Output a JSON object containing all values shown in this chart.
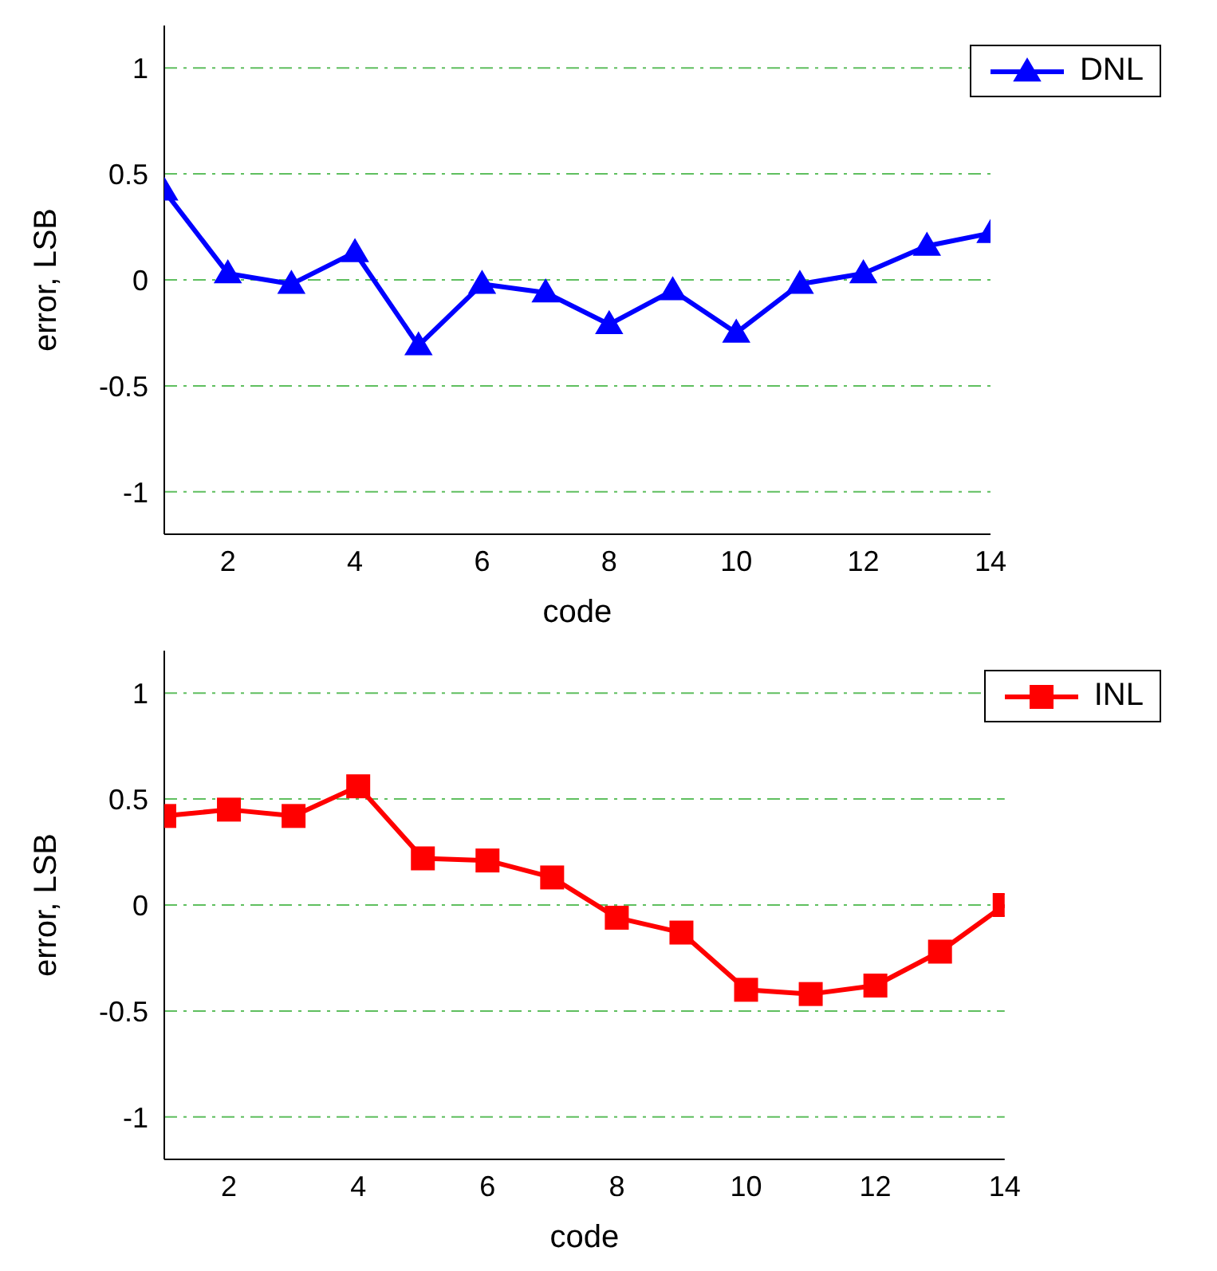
{
  "chart_data": [
    {
      "type": "line",
      "xlabel": "code",
      "ylabel": "error, LSB",
      "x": [
        1,
        2,
        3,
        4,
        5,
        6,
        7,
        8,
        9,
        10,
        11,
        12,
        13,
        14
      ],
      "series": [
        {
          "name": "DNL",
          "color": "#0000ff",
          "values": [
            0.42,
            0.03,
            -0.02,
            0.13,
            -0.31,
            -0.02,
            -0.06,
            -0.21,
            -0.05,
            -0.25,
            -0.02,
            0.03,
            0.16,
            0.22
          ]
        }
      ],
      "marker": "triangle",
      "line_style": "solid",
      "xlim": [
        1,
        14
      ],
      "xticks": [
        2,
        4,
        6,
        8,
        10,
        12,
        14
      ],
      "ylim": [
        -1.2,
        1.2
      ],
      "yticks": [
        -1,
        -0.5,
        0,
        0.5,
        1
      ],
      "grid": "y",
      "legend": "top right"
    },
    {
      "type": "line",
      "xlabel": "code",
      "ylabel": "error, LSB",
      "x": [
        1,
        2,
        3,
        4,
        5,
        6,
        7,
        8,
        9,
        10,
        11,
        12,
        13,
        14
      ],
      "series": [
        {
          "name": "INL",
          "color": "#ff0000",
          "values": [
            0.42,
            0.45,
            0.42,
            0.56,
            0.22,
            0.21,
            0.13,
            -0.06,
            -0.13,
            -0.4,
            -0.42,
            -0.38,
            -0.22,
            0
          ]
        }
      ],
      "marker": "square",
      "line_style": "solid",
      "xlim": [
        1,
        14
      ],
      "xticks": [
        2,
        4,
        6,
        8,
        10,
        12,
        14
      ],
      "ylim": [
        -1.2,
        1.2
      ],
      "yticks": [
        -1,
        -0.5,
        0,
        0.5,
        1
      ],
      "grid": "y",
      "legend": "top right"
    }
  ]
}
